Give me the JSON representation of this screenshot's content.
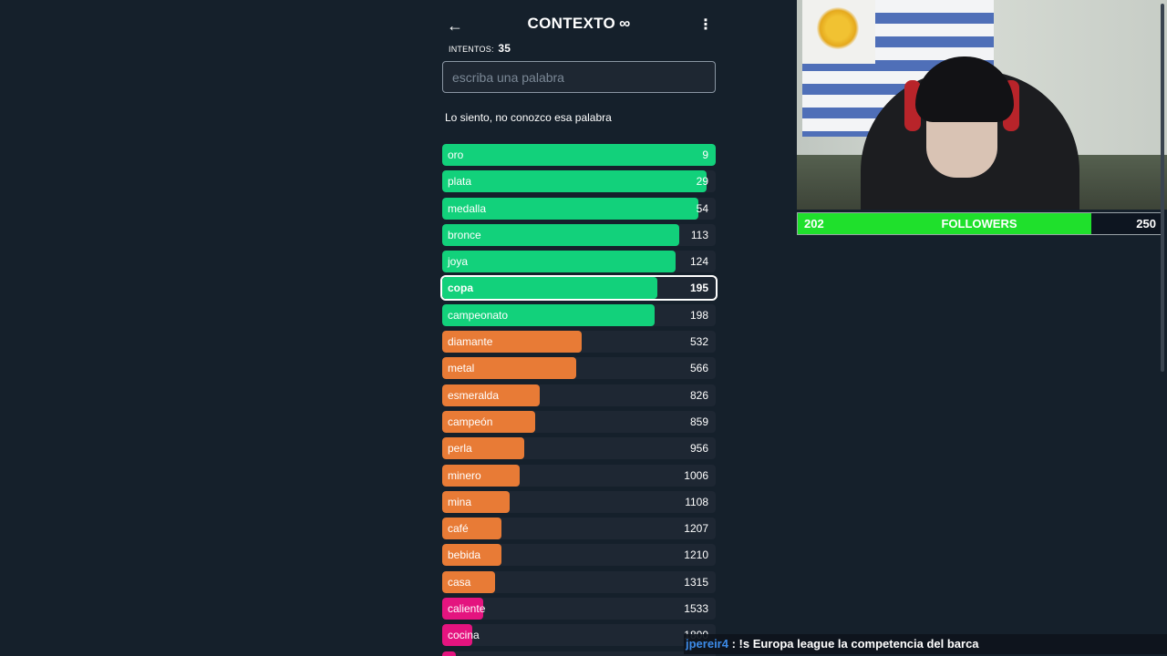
{
  "header": {
    "back_icon": "arrow-left-icon",
    "title": "CONTEXTO",
    "title_symbol": "∞",
    "menu_icon": "more-vertical-icon"
  },
  "attempts": {
    "label": "INTENTOS:",
    "value": "35"
  },
  "input": {
    "placeholder": "escriba una palabra",
    "value": ""
  },
  "message": "Lo siento, no conozco esa palabra",
  "colors": {
    "green": "#12d17b",
    "orange": "#e87b36",
    "pink": "#e4147f",
    "row_bg": "#1e2733",
    "page_bg": "#15202b"
  },
  "guesses": [
    {
      "word": "oro",
      "rank": "9",
      "color": "green",
      "fill": 1.0
    },
    {
      "word": "plata",
      "rank": "29",
      "color": "green",
      "fill": 0.965
    },
    {
      "word": "medalla",
      "rank": "54",
      "color": "green",
      "fill": 0.935
    },
    {
      "word": "bronce",
      "rank": "113",
      "color": "green",
      "fill": 0.865
    },
    {
      "word": "joya",
      "rank": "124",
      "color": "green",
      "fill": 0.852
    },
    {
      "word": "copa",
      "rank": "195",
      "color": "green",
      "fill": 0.785,
      "current": true
    },
    {
      "word": "campeonato",
      "rank": "198",
      "color": "green",
      "fill": 0.775
    },
    {
      "word": "diamante",
      "rank": "532",
      "color": "orange",
      "fill": 0.51
    },
    {
      "word": "metal",
      "rank": "566",
      "color": "orange",
      "fill": 0.49
    },
    {
      "word": "esmeralda",
      "rank": "826",
      "color": "orange",
      "fill": 0.355
    },
    {
      "word": "campeón",
      "rank": "859",
      "color": "orange",
      "fill": 0.34
    },
    {
      "word": "perla",
      "rank": "956",
      "color": "orange",
      "fill": 0.3
    },
    {
      "word": "minero",
      "rank": "1006",
      "color": "orange",
      "fill": 0.283
    },
    {
      "word": "mina",
      "rank": "1108",
      "color": "orange",
      "fill": 0.248
    },
    {
      "word": "café",
      "rank": "1207",
      "color": "orange",
      "fill": 0.218
    },
    {
      "word": "bebida",
      "rank": "1210",
      "color": "orange",
      "fill": 0.218
    },
    {
      "word": "casa",
      "rank": "1315",
      "color": "orange",
      "fill": 0.193
    },
    {
      "word": "caliente",
      "rank": "1533",
      "color": "pink",
      "fill": 0.15
    },
    {
      "word": "cocina",
      "rank": "1800",
      "color": "pink",
      "fill": 0.11
    },
    {
      "word": "",
      "rank": "",
      "color": "pink",
      "fill": 0.05
    }
  ],
  "followers": {
    "current": "202",
    "label": "FOLLOWERS",
    "goal": "250",
    "progress": 0.81
  },
  "chat": {
    "user": "jpereir4",
    "separator": " : ",
    "message": "!s Europa league la competencia del barca"
  }
}
